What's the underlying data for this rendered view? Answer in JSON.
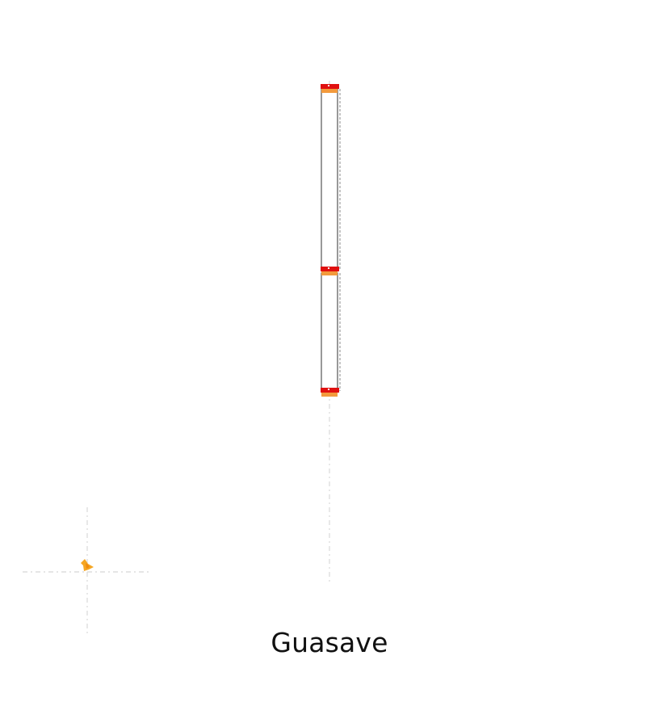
{
  "map": {
    "place_name": "Guasave"
  },
  "colors": {
    "background": "#ffffff",
    "road_outline": "#555555",
    "road_edge": "#888888",
    "guide_line": "#d8d8d8",
    "marker_red": "#e01010",
    "marker_orange": "#f39a3c",
    "position_marker": "#f5a623",
    "label_text": "#111111"
  },
  "icons": {
    "position_marker": "location-marker-icon"
  }
}
